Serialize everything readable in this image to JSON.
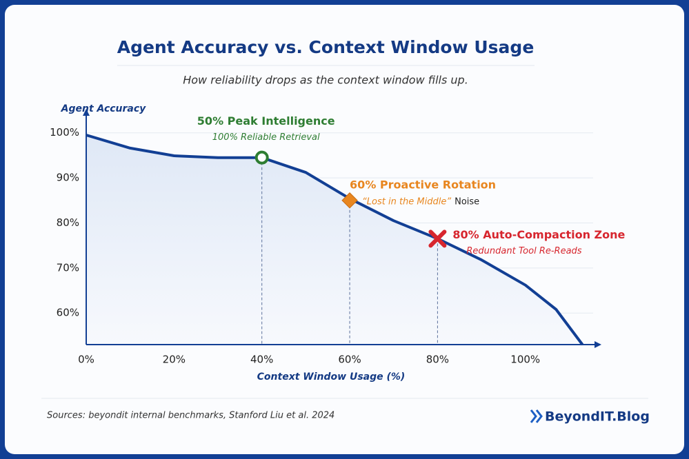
{
  "chart_data": {
    "type": "line",
    "title": "Agent Accuracy vs. Context Window Usage",
    "subtitle": "How reliability drops as the context window fills up.",
    "y_label": "Agent Accuracy",
    "x_label": "Context Window Usage (%)",
    "x": [
      0,
      10,
      20,
      30,
      40,
      50,
      60,
      70,
      80,
      90,
      100,
      107,
      113
    ],
    "values": [
      99.5,
      96.6,
      94.9,
      94.5,
      94.5,
      91.2,
      85.4,
      80.5,
      76.5,
      71.8,
      66.2,
      60.8,
      53
    ],
    "color": "#123f94",
    "xlim": [
      0,
      117
    ],
    "ylim": [
      53,
      105
    ],
    "xticks": [
      {
        "value": 0,
        "label": "0%"
      },
      {
        "value": 20,
        "label": "20%"
      },
      {
        "value": 40,
        "label": "40%"
      },
      {
        "value": 60,
        "label": "60%"
      },
      {
        "value": 80,
        "label": "80%"
      },
      {
        "value": 100,
        "label": "100%"
      }
    ],
    "yticks": [
      {
        "value": 60,
        "label": "60%"
      },
      {
        "value": 70,
        "label": "70%"
      },
      {
        "value": 80,
        "label": "80%"
      },
      {
        "value": 90,
        "label": "90%"
      },
      {
        "value": 100,
        "label": "100%"
      }
    ],
    "grid": true,
    "annotations": [
      {
        "x": 40,
        "y": 94.5,
        "marker": "circle",
        "color": "#2e7d32",
        "label": "50% Peak Intelligence",
        "sublabel": "100% Reliable Retrieval"
      },
      {
        "x": 60,
        "y": 85,
        "marker": "diamond",
        "color": "#e8861f",
        "label": "60% Proactive Rotation",
        "sublabel": "“Lost in the Middle”",
        "note": "Noise"
      },
      {
        "x": 80,
        "y": 76.5,
        "marker": "cross",
        "color": "#d7262e",
        "label": "80% Auto-Compaction Zone",
        "sublabel": "Redundant Tool Re-Reads"
      }
    ]
  },
  "footer": {
    "source": "Sources: beyondit internal benchmarks, Stanford Liu et al. 2024",
    "brand": "BeyondIT.Blog"
  }
}
